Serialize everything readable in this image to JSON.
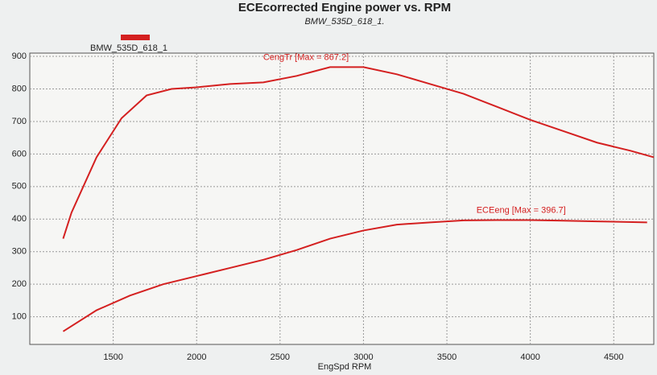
{
  "chart_data": {
    "type": "line",
    "title": "ECEcorrected Engine power vs. RPM",
    "subtitle": "BMW_535D_618_1.",
    "legend": {
      "label": "BMW_535D_618_1",
      "color": "#d42020"
    },
    "x_label": "EngSpd  RPM",
    "xlim": [
      1000,
      4740
    ],
    "xticks": [
      1500,
      2000,
      2500,
      3000,
      3500,
      4000,
      4500
    ],
    "ylim": [
      15,
      910
    ],
    "yticks": [
      100,
      200,
      300,
      400,
      500,
      600,
      700,
      800,
      900
    ],
    "grid": true,
    "series": [
      {
        "label": "CengTr [Max = 867.2]",
        "color": "#d42020",
        "x": [
          1200,
          1250,
          1400,
          1550,
          1700,
          1850,
          2000,
          2200,
          2400,
          2600,
          2800,
          3000,
          3200,
          3400,
          3600,
          3800,
          4000,
          4200,
          4400,
          4600,
          4740
        ],
        "values": [
          340,
          420,
          590,
          710,
          780,
          800,
          805,
          815,
          820,
          840,
          867,
          867,
          845,
          815,
          785,
          745,
          705,
          670,
          635,
          610,
          590
        ]
      },
      {
        "label": "ECEeng [Max = 396.7]",
        "color": "#d42020",
        "x": [
          1200,
          1400,
          1600,
          1800,
          2000,
          2200,
          2400,
          2600,
          2800,
          3000,
          3200,
          3400,
          3600,
          3800,
          4000,
          4200,
          4400,
          4700
        ],
        "values": [
          55,
          120,
          165,
          200,
          225,
          250,
          275,
          305,
          340,
          365,
          383,
          390,
          396,
          397,
          397,
          395,
          393,
          390
        ]
      }
    ]
  }
}
